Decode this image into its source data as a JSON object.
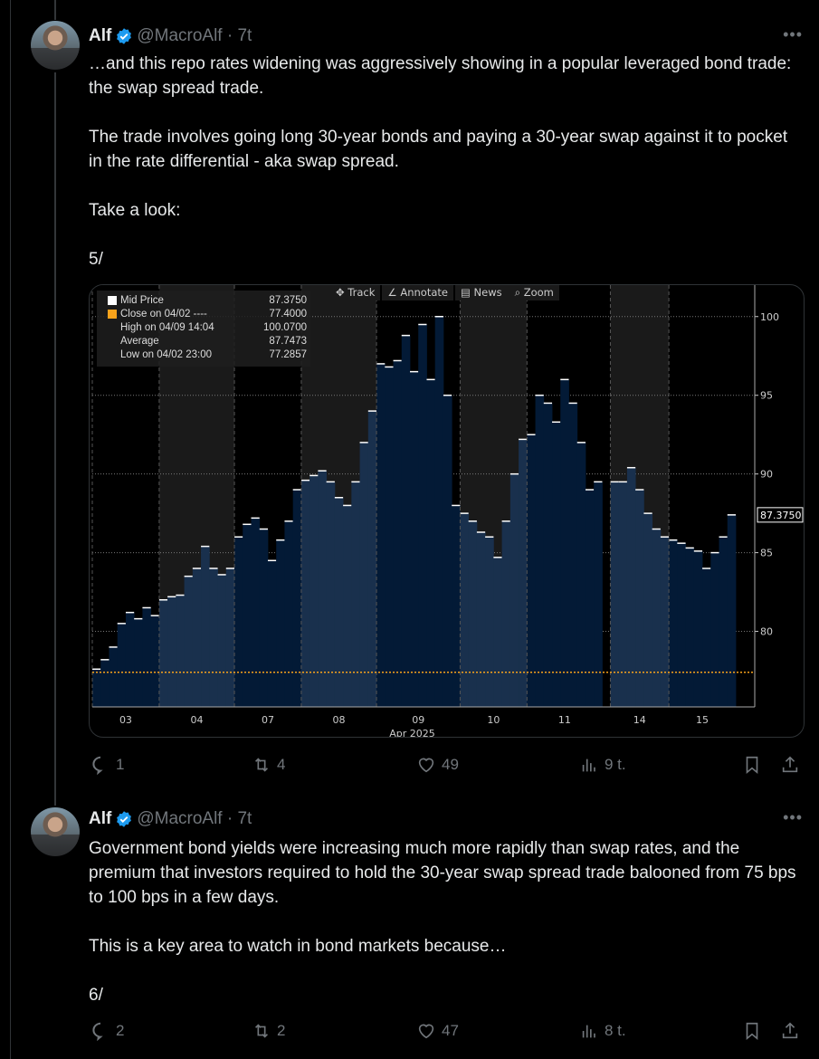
{
  "tweets": [
    {
      "name": "Alf",
      "handle": "@MacroAlf",
      "time": "7t",
      "text": "…and this repo rates widening was aggressively showing in a popular leveraged bond trade: the swap spread trade.\n\nThe trade involves going long 30-year bonds and paying a 30-year swap against it to pocket in the rate differential - aka swap spread.\n\nTake a look:\n\n5/",
      "replies": "1",
      "reposts": "4",
      "likes": "49",
      "views": "9 t."
    },
    {
      "name": "Alf",
      "handle": "@MacroAlf",
      "time": "7t",
      "text": "Government bond yields were increasing much more rapidly than swap rates, and the premium that investors required to hold the 30-year swap spread trade balooned from 75 bps to 100 bps in a few days.\n\nThis is a key area to watch in bond markets because…\n\n6/",
      "replies": "2",
      "reposts": "2",
      "likes": "47",
      "views": "8 t."
    }
  ],
  "colors": {
    "verified": "#1d9bf0",
    "close_line": "#f7a21b",
    "fill_dark": "#031a36",
    "fill_light": "#19304d"
  },
  "chart_data": {
    "type": "bar",
    "title": "",
    "toolbar": [
      "Track",
      "Annotate",
      "News",
      "Zoom"
    ],
    "legend": [
      {
        "label": "Mid Price",
        "value": "87.3750"
      },
      {
        "label": "Close on 04/02 ----",
        "value": "77.4000"
      },
      {
        "label": "High on 04/09 14:04",
        "value": "100.0700"
      },
      {
        "label": "Average",
        "value": "87.7473"
      },
      {
        "label": "Low on 04/02 23:00",
        "value": "77.2857"
      }
    ],
    "last_value_label": "87.3750",
    "close_level": 77.4,
    "ylim": [
      75.2,
      102
    ],
    "yticks": [
      80,
      85,
      90,
      95,
      100
    ],
    "xlabel": "Apr 2025",
    "sessions": [
      {
        "label": "03",
        "values": [
          77.6,
          78.2,
          79.0,
          80.5,
          81.2,
          80.8,
          81.5,
          81.0
        ]
      },
      {
        "label": "04",
        "values": [
          82.0,
          82.2,
          82.3,
          83.5,
          84.0,
          85.4,
          84.0,
          83.6,
          84.0
        ]
      },
      {
        "label": "07",
        "values": [
          86.0,
          86.8,
          87.2,
          86.5,
          84.5,
          85.8,
          87.0,
          89.0
        ]
      },
      {
        "label": "08",
        "values": [
          89.6,
          89.9,
          90.2,
          89.5,
          88.5,
          88.0,
          89.5,
          92.0,
          94.0
        ]
      },
      {
        "label": "09",
        "values": [
          97.0,
          96.8,
          97.2,
          98.8,
          96.5,
          99.5,
          96.0,
          100.0,
          95.0,
          88.0
        ]
      },
      {
        "label": "10",
        "values": [
          87.5,
          87.0,
          86.3,
          86.0,
          84.7,
          87.0,
          90.0,
          92.2
        ]
      },
      {
        "label": "11",
        "values": [
          92.5,
          95.0,
          94.5,
          93.3,
          96.0,
          94.5,
          92.0,
          89.0,
          89.5
        ]
      },
      {
        "label": "14",
        "values": [
          89.5,
          89.5,
          90.4,
          89.0,
          87.5,
          86.5,
          86.0
        ]
      },
      {
        "label": "15",
        "values": [
          85.8,
          85.6,
          85.3,
          85.1,
          84.0,
          85.0,
          86.0,
          87.4
        ]
      }
    ]
  }
}
